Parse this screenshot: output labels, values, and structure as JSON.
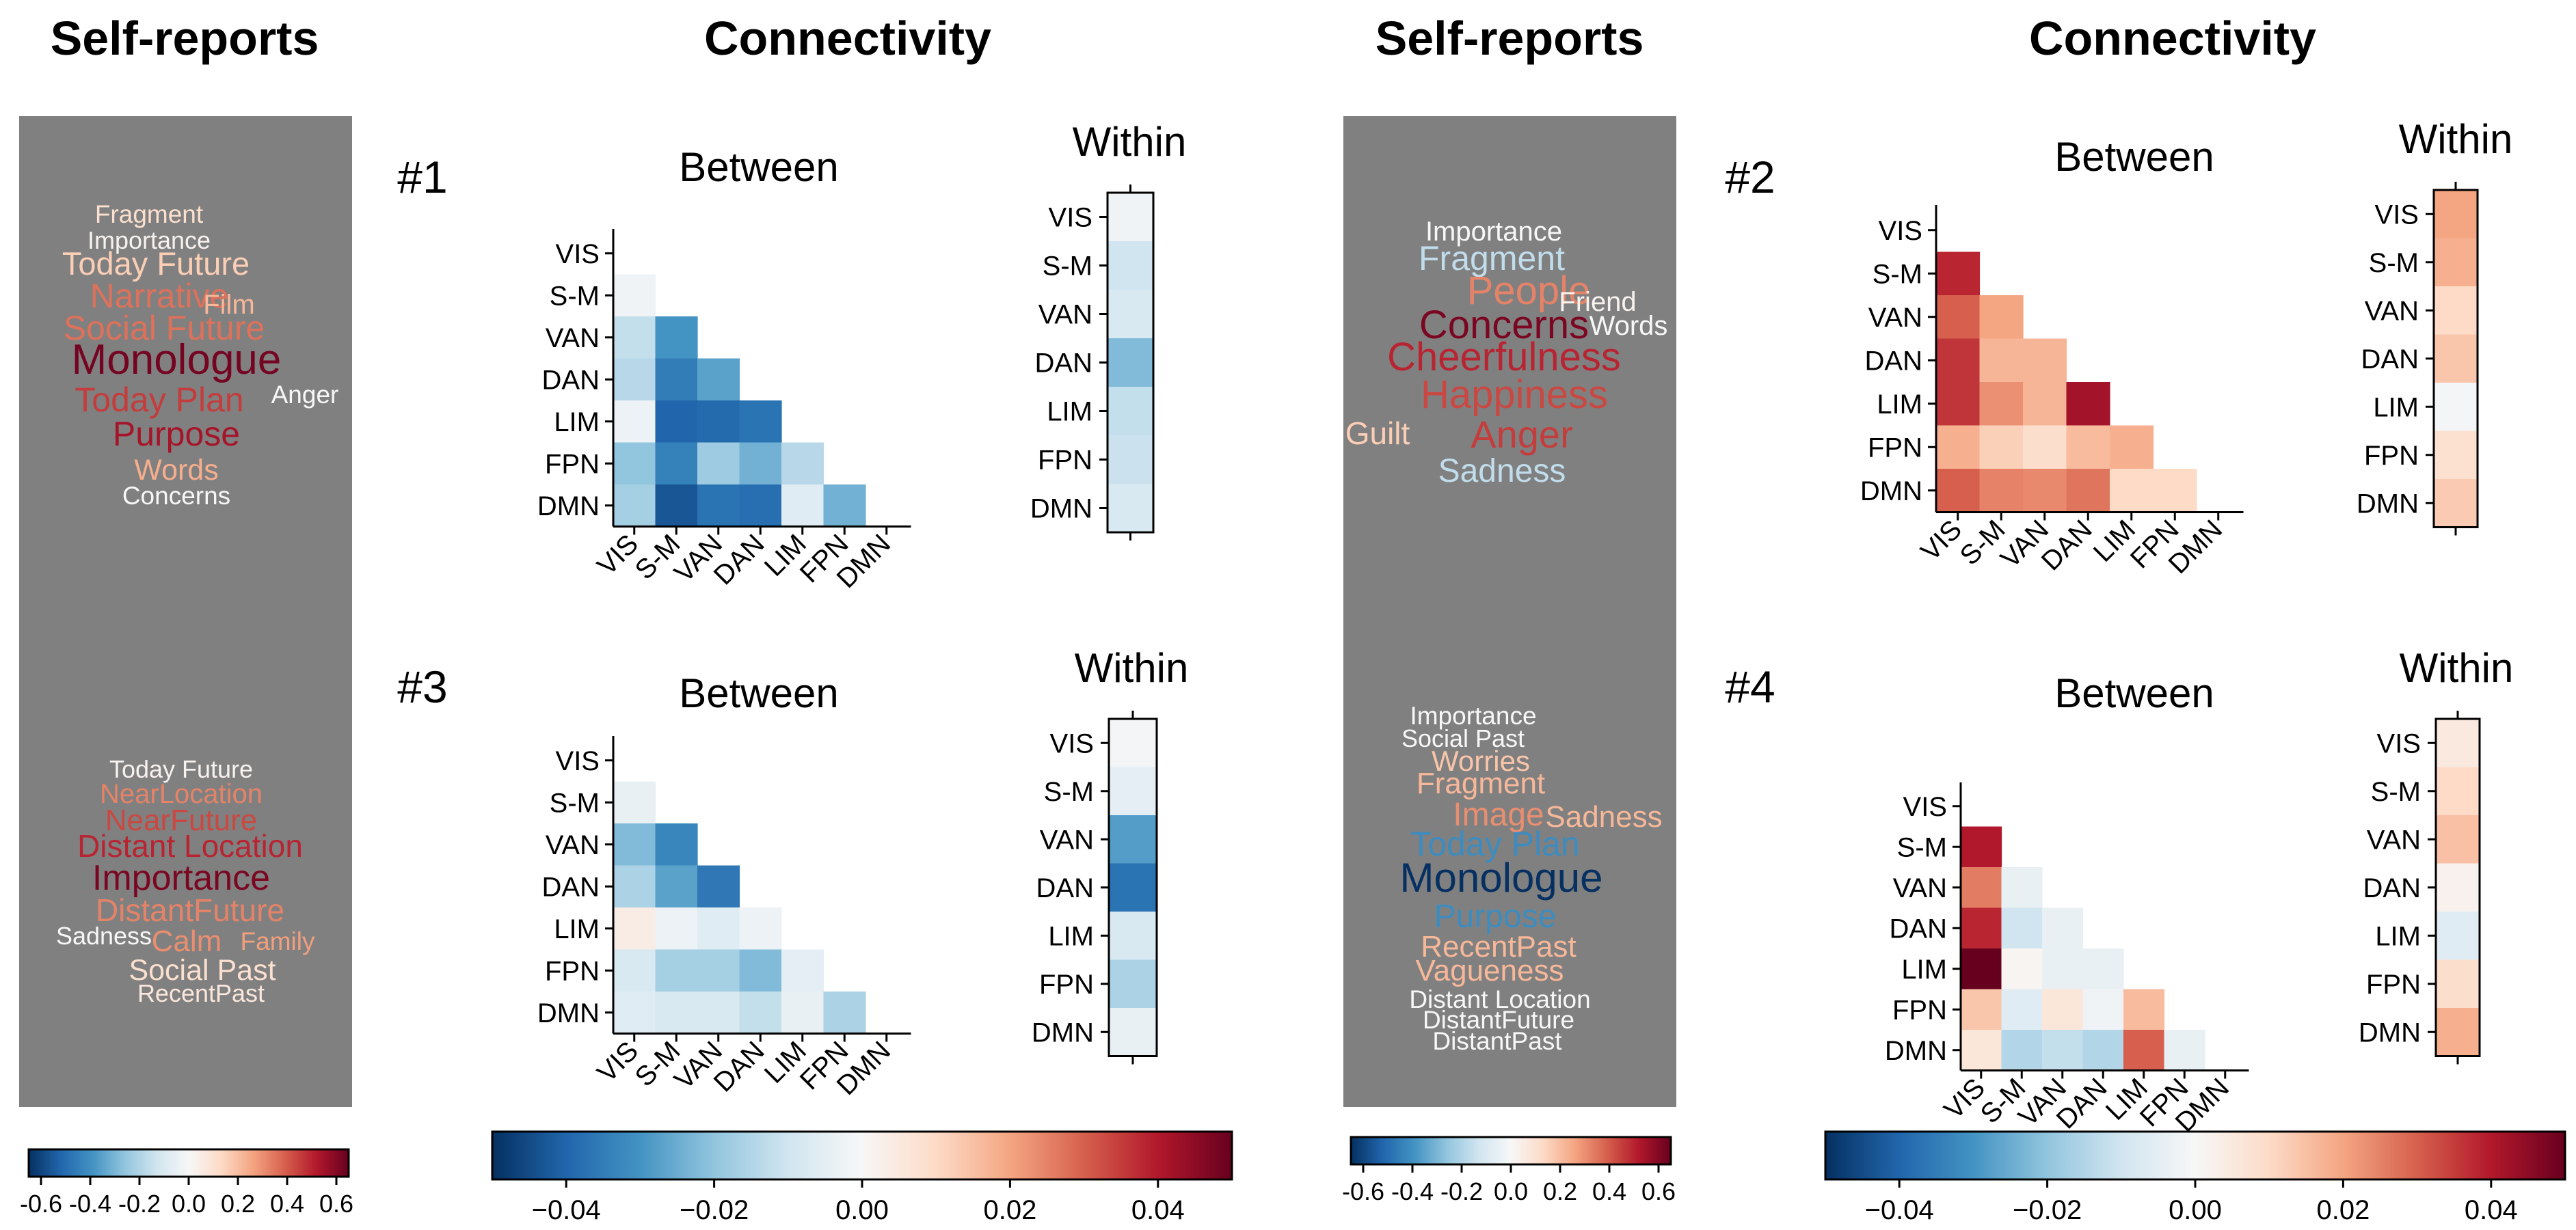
{
  "headers": {
    "self_reports": "Self-reports",
    "connectivity": "Connectivity"
  },
  "colorbars": {
    "wordcloud_ticks": [
      "-0.6",
      "-0.4",
      "-0.2",
      "0.0",
      "0.2",
      "0.4",
      "0.6"
    ],
    "connectivity_ticks": [
      "−0.04",
      "−0.02",
      "0.00",
      "0.02",
      "0.04"
    ],
    "range_wordcloud": [
      -0.6,
      0.6
    ],
    "range_connectivity": [
      -0.05,
      0.05
    ],
    "colormap": "RdBu_r"
  },
  "chart_data": [
    {
      "id": "#1",
      "type": "heatmap",
      "between_title": "Between",
      "within_title": "Within",
      "networks": [
        "VIS",
        "S-M",
        "VAN",
        "DAN",
        "LIM",
        "FPN",
        "DMN"
      ],
      "between": [
        [
          null,
          null,
          null,
          null,
          null,
          null,
          null
        ],
        [
          -0.002,
          null,
          null,
          null,
          null,
          null,
          null
        ],
        [
          -0.012,
          -0.03,
          null,
          null,
          null,
          null,
          null
        ],
        [
          -0.014,
          -0.035,
          -0.027,
          null,
          null,
          null,
          null
        ],
        [
          -0.003,
          -0.04,
          -0.039,
          -0.037,
          null,
          null,
          null
        ],
        [
          -0.02,
          -0.034,
          -0.018,
          -0.024,
          -0.014,
          null,
          null
        ],
        [
          -0.017,
          -0.043,
          -0.037,
          -0.038,
          -0.006,
          -0.024,
          null
        ]
      ],
      "within": [
        -0.002,
        -0.01,
        -0.008,
        -0.022,
        -0.012,
        -0.011,
        -0.008
      ]
    },
    {
      "id": "#2",
      "type": "heatmap",
      "between_title": "Between",
      "within_title": "Within",
      "networks": [
        "VIS",
        "S-M",
        "VAN",
        "DAN",
        "LIM",
        "FPN",
        "DMN"
      ],
      "between": [
        [
          null,
          null,
          null,
          null,
          null,
          null,
          null
        ],
        [
          0.038,
          null,
          null,
          null,
          null,
          null,
          null
        ],
        [
          0.03,
          0.02,
          null,
          null,
          null,
          null,
          null
        ],
        [
          0.036,
          0.017,
          0.017,
          null,
          null,
          null,
          null
        ],
        [
          0.036,
          0.023,
          0.017,
          0.042,
          null,
          null,
          null
        ],
        [
          0.018,
          0.012,
          0.009,
          0.016,
          0.018,
          null,
          null
        ],
        [
          0.03,
          0.025,
          0.024,
          0.027,
          0.01,
          0.01,
          null
        ]
      ],
      "within": [
        0.02,
        0.018,
        0.01,
        0.014,
        -0.001,
        0.008,
        0.013
      ]
    },
    {
      "id": "#3",
      "type": "heatmap",
      "between_title": "Between",
      "within_title": "Within",
      "networks": [
        "VIS",
        "S-M",
        "VAN",
        "DAN",
        "LIM",
        "FPN",
        "DMN"
      ],
      "between": [
        [
          null,
          null,
          null,
          null,
          null,
          null,
          null
        ],
        [
          -0.004,
          null,
          null,
          null,
          null,
          null,
          null
        ],
        [
          -0.022,
          -0.033,
          null,
          null,
          null,
          null,
          null
        ],
        [
          -0.016,
          -0.027,
          -0.036,
          null,
          null,
          null,
          null
        ],
        [
          0.004,
          -0.003,
          -0.006,
          -0.003,
          null,
          null,
          null
        ],
        [
          -0.008,
          -0.017,
          -0.017,
          -0.022,
          -0.005,
          null,
          null
        ],
        [
          -0.006,
          -0.008,
          -0.008,
          -0.012,
          -0.004,
          -0.016,
          null
        ]
      ],
      "within": [
        -0.001,
        -0.005,
        -0.028,
        -0.037,
        -0.008,
        -0.016,
        -0.004
      ]
    },
    {
      "id": "#4",
      "type": "heatmap",
      "between_title": "Between",
      "within_title": "Within",
      "networks": [
        "VIS",
        "S-M",
        "VAN",
        "DAN",
        "LIM",
        "FPN",
        "DMN"
      ],
      "between": [
        [
          null,
          null,
          null,
          null,
          null,
          null,
          null
        ],
        [
          0.04,
          null,
          null,
          null,
          null,
          null,
          null
        ],
        [
          0.026,
          -0.004,
          null,
          null,
          null,
          null,
          null
        ],
        [
          0.038,
          -0.01,
          -0.004,
          null,
          null,
          null,
          null
        ],
        [
          0.055,
          0.001,
          -0.004,
          -0.004,
          null,
          null,
          null
        ],
        [
          0.014,
          -0.006,
          0.006,
          -0.002,
          0.016,
          null,
          null
        ],
        [
          0.006,
          -0.015,
          -0.012,
          -0.015,
          0.03,
          -0.004,
          null
        ]
      ],
      "within": [
        0.005,
        0.01,
        0.015,
        0.002,
        -0.006,
        0.009,
        0.018
      ]
    }
  ],
  "wordclouds": [
    {
      "id": "wc1",
      "words": [
        {
          "text": "Fragment",
          "value": 0.1
        },
        {
          "text": "Importance",
          "value": 0.02
        },
        {
          "text": "Today Future",
          "value": 0.15
        },
        {
          "text": "Narrative",
          "value": 0.33
        },
        {
          "text": "Film",
          "value": 0.2
        },
        {
          "text": "Social Future",
          "value": 0.33
        },
        {
          "text": "Monologue",
          "value": 0.58
        },
        {
          "text": "Today Plan",
          "value": 0.42
        },
        {
          "text": "Anger",
          "value": 0.0
        },
        {
          "text": "Purpose",
          "value": 0.5
        },
        {
          "text": "Words",
          "value": 0.22
        },
        {
          "text": "Concerns",
          "value": 0.0
        }
      ]
    },
    {
      "id": "wc3",
      "words": [
        {
          "text": "Today Future",
          "value": 0.02
        },
        {
          "text": "NearLocation",
          "value": 0.3
        },
        {
          "text": "NearFuture",
          "value": 0.4
        },
        {
          "text": "Distant Location",
          "value": 0.46
        },
        {
          "text": "Importance",
          "value": 0.57
        },
        {
          "text": "DistantFuture",
          "value": 0.3
        },
        {
          "text": "Sadness",
          "value": 0.0
        },
        {
          "text": "Calm",
          "value": 0.28
        },
        {
          "text": "Family",
          "value": 0.25
        },
        {
          "text": "Social Past",
          "value": 0.1
        },
        {
          "text": "RecentPast",
          "value": 0.07
        }
      ]
    },
    {
      "id": "wc2",
      "words": [
        {
          "text": "Importance",
          "value": 0.0
        },
        {
          "text": "Fragment",
          "value": -0.15
        },
        {
          "text": "People",
          "value": 0.3
        },
        {
          "text": "Friend",
          "value": 0.02
        },
        {
          "text": "Concerns",
          "value": 0.57
        },
        {
          "text": "Words",
          "value": 0.0
        },
        {
          "text": "Cheerfulness",
          "value": 0.46
        },
        {
          "text": "Happiness",
          "value": 0.4
        },
        {
          "text": "Guilt",
          "value": 0.15
        },
        {
          "text": "Anger",
          "value": 0.42
        },
        {
          "text": "Sadness",
          "value": -0.15
        }
      ]
    },
    {
      "id": "wc4",
      "words": [
        {
          "text": "Importance",
          "value": 0.0
        },
        {
          "text": "Social Past",
          "value": 0.0
        },
        {
          "text": "Worries",
          "value": 0.17
        },
        {
          "text": "Fragment",
          "value": 0.2
        },
        {
          "text": "Image",
          "value": 0.28
        },
        {
          "text": "Sadness",
          "value": 0.2
        },
        {
          "text": "Today Plan",
          "value": -0.38
        },
        {
          "text": "Monologue",
          "value": -0.75
        },
        {
          "text": "Purpose",
          "value": -0.38
        },
        {
          "text": "RecentPast",
          "value": 0.2
        },
        {
          "text": "Vagueness",
          "value": 0.2
        },
        {
          "text": "Distant Location",
          "value": 0.0
        },
        {
          "text": "DistantFuture",
          "value": 0.0
        },
        {
          "text": "DistantPast",
          "value": 0.0
        }
      ]
    }
  ]
}
